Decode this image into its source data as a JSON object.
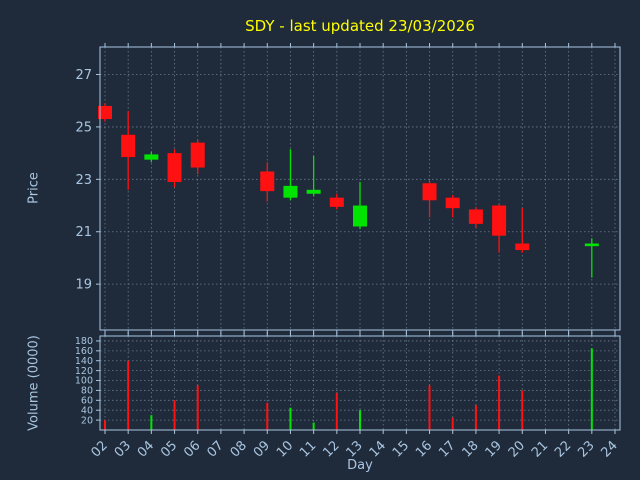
{
  "title": "SDY - last updated 23/03/2026",
  "axes": {
    "price_label": "Price",
    "volume_label": "Volume (0000)",
    "x_label": "Day"
  },
  "colors": {
    "background": "#1f2b3b",
    "text": "#a9c5e0",
    "title": "#ffff00",
    "grid": "#9aaec2",
    "spine": "#a9c5e0",
    "up": "#00e400",
    "down": "#ff1111"
  },
  "chart_data": [
    {
      "type": "candlestick",
      "title": "SDY - last updated 23/03/2026",
      "xlabel": "Day",
      "ylabel": "Price",
      "ylim": [
        17.25,
        28.05
      ],
      "yticks": [
        19,
        21,
        23,
        25,
        27
      ],
      "xtick_labels": [
        "02",
        "03",
        "04",
        "05",
        "06",
        "07",
        "08",
        "09",
        "10",
        "11",
        "12",
        "13",
        "14",
        "15",
        "16",
        "17",
        "18",
        "19",
        "20",
        "21",
        "22",
        "23",
        "24"
      ],
      "grid": true,
      "candles": [
        {
          "day": 2,
          "open": 25.8,
          "high": 25.9,
          "low": 25.2,
          "close": 25.3
        },
        {
          "day": 3,
          "open": 24.7,
          "high": 25.6,
          "low": 22.6,
          "close": 23.85
        },
        {
          "day": 4,
          "open": 23.75,
          "high": 24.05,
          "low": 23.65,
          "close": 23.95
        },
        {
          "day": 5,
          "open": 24.0,
          "high": 24.15,
          "low": 22.7,
          "close": 22.9
        },
        {
          "day": 6,
          "open": 24.4,
          "high": 24.5,
          "low": 23.2,
          "close": 23.45
        },
        {
          "day": 9,
          "open": 23.3,
          "high": 23.65,
          "low": 22.15,
          "close": 22.55
        },
        {
          "day": 10,
          "open": 22.3,
          "high": 24.15,
          "low": 22.2,
          "close": 22.75
        },
        {
          "day": 11,
          "open": 22.45,
          "high": 23.9,
          "low": 22.35,
          "close": 22.6
        },
        {
          "day": 12,
          "open": 22.3,
          "high": 22.45,
          "low": 21.85,
          "close": 21.95
        },
        {
          "day": 13,
          "open": 21.2,
          "high": 22.9,
          "low": 21.1,
          "close": 22.0
        },
        {
          "day": 16,
          "open": 22.85,
          "high": 22.95,
          "low": 21.55,
          "close": 22.2
        },
        {
          "day": 17,
          "open": 22.3,
          "high": 22.4,
          "low": 21.55,
          "close": 21.9
        },
        {
          "day": 18,
          "open": 21.85,
          "high": 21.95,
          "low": 21.15,
          "close": 21.3
        },
        {
          "day": 19,
          "open": 22.0,
          "high": 22.05,
          "low": 20.2,
          "close": 20.85
        },
        {
          "day": 20,
          "open": 20.55,
          "high": 21.9,
          "low": 20.2,
          "close": 20.3
        },
        {
          "day": 23,
          "open": 20.45,
          "high": 20.75,
          "low": 19.25,
          "close": 20.55
        }
      ]
    },
    {
      "type": "bar",
      "ylabel": "Volume (0000)",
      "ylim": [
        0,
        190
      ],
      "yticks": [
        20,
        40,
        60,
        80,
        100,
        120,
        140,
        160,
        180
      ],
      "grid": true,
      "bars": [
        {
          "day": 2,
          "value": 20
        },
        {
          "day": 3,
          "value": 140
        },
        {
          "day": 4,
          "value": 30
        },
        {
          "day": 5,
          "value": 60
        },
        {
          "day": 6,
          "value": 90
        },
        {
          "day": 9,
          "value": 55
        },
        {
          "day": 10,
          "value": 45
        },
        {
          "day": 11,
          "value": 15
        },
        {
          "day": 12,
          "value": 75
        },
        {
          "day": 13,
          "value": 40
        },
        {
          "day": 16,
          "value": 90
        },
        {
          "day": 17,
          "value": 25
        },
        {
          "day": 18,
          "value": 50
        },
        {
          "day": 19,
          "value": 110
        },
        {
          "day": 20,
          "value": 80
        },
        {
          "day": 23,
          "value": 165
        }
      ]
    }
  ]
}
